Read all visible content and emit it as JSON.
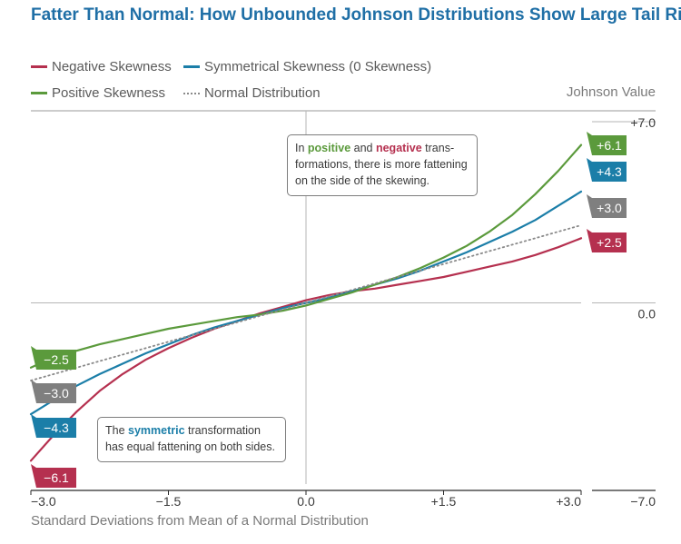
{
  "title": "Fatter Than Normal: How Unbounded Johnson Distributions Show Large Tail Risk",
  "chart_data": {
    "type": "line",
    "title": "Fatter Than Normal: How Unbounded Johnson Distributions Show Large Tail Risk",
    "xlabel": "Standard Deviations from Mean of a Normal Distribution",
    "ylabel": "Johnson Value",
    "xlim": [
      -3.0,
      3.0
    ],
    "ylim": [
      -7.0,
      7.0
    ],
    "x_ticks": [
      {
        "value": -3.0,
        "label": "−3.0"
      },
      {
        "value": -1.5,
        "label": "−1.5"
      },
      {
        "value": 0.0,
        "label": "0.0"
      },
      {
        "value": 1.5,
        "label": "+1.5"
      },
      {
        "value": 3.0,
        "label": "+3.0"
      }
    ],
    "y_ticks": [
      {
        "value": 7.0,
        "label": "+7.0"
      },
      {
        "value": 0.0,
        "label": "0.0"
      },
      {
        "value": -7.0,
        "label": "−7.0"
      }
    ],
    "x": [
      -3.0,
      -2.75,
      -2.5,
      -2.25,
      -2.0,
      -1.75,
      -1.5,
      -1.25,
      -1.0,
      -0.75,
      -0.5,
      -0.25,
      0.0,
      0.25,
      0.5,
      0.75,
      1.0,
      1.25,
      1.5,
      1.75,
      2.0,
      2.25,
      2.5,
      2.75,
      3.0
    ],
    "series": [
      {
        "name": "Negative Skewness",
        "key": "negative",
        "color": "#b5304f",
        "style": "solid",
        "end_left": "−6.1",
        "end_right": "+2.5",
        "values": [
          -6.1,
          -5.1,
          -4.2,
          -3.4,
          -2.75,
          -2.2,
          -1.75,
          -1.35,
          -1.0,
          -0.7,
          -0.4,
          -0.15,
          0.1,
          0.3,
          0.45,
          0.55,
          0.7,
          0.85,
          1.0,
          1.2,
          1.4,
          1.6,
          1.85,
          2.15,
          2.5
        ]
      },
      {
        "name": "Symmetrical Skewness (0 Skewness)",
        "key": "symmetric",
        "color": "#1b7ea8",
        "style": "solid",
        "end_left": "−4.3",
        "end_right": "+4.3",
        "values": [
          -4.3,
          -3.75,
          -3.2,
          -2.75,
          -2.35,
          -1.95,
          -1.6,
          -1.25,
          -0.95,
          -0.7,
          -0.45,
          -0.2,
          0.0,
          0.2,
          0.45,
          0.7,
          0.95,
          1.25,
          1.6,
          1.95,
          2.35,
          2.75,
          3.2,
          3.75,
          4.3
        ]
      },
      {
        "name": "Positive Skewness",
        "key": "positive",
        "color": "#5b9a3c",
        "style": "solid",
        "end_left": "−2.5",
        "end_right": "+6.1",
        "values": [
          -2.5,
          -2.1,
          -1.85,
          -1.6,
          -1.4,
          -1.2,
          -1.0,
          -0.85,
          -0.7,
          -0.55,
          -0.45,
          -0.3,
          -0.1,
          0.15,
          0.4,
          0.7,
          1.0,
          1.35,
          1.75,
          2.2,
          2.75,
          3.4,
          4.2,
          5.1,
          6.1
        ]
      },
      {
        "name": "Normal Distribution",
        "key": "normal",
        "color": "#8a8a8a",
        "style": "dotted",
        "end_left": "−3.0",
        "end_right": "+3.0",
        "values": [
          -3.0,
          -2.75,
          -2.5,
          -2.25,
          -2.0,
          -1.75,
          -1.5,
          -1.25,
          -1.0,
          -0.75,
          -0.5,
          -0.25,
          0.0,
          0.25,
          0.5,
          0.75,
          1.0,
          1.25,
          1.5,
          1.75,
          2.0,
          2.25,
          2.5,
          2.75,
          3.0
        ]
      }
    ],
    "annotations": {
      "top": {
        "pre": "In ",
        "pos": "positive",
        "mid": " and ",
        "neg": "negative",
        "rest1": " trans-",
        "line2": "formations, there is more fattening",
        "line3": "on the side of the skewing."
      },
      "bottom": {
        "pre": "The ",
        "sym": "symmetric",
        "rest1": " transformation",
        "line2": "has equal fattening on both sides."
      }
    }
  }
}
